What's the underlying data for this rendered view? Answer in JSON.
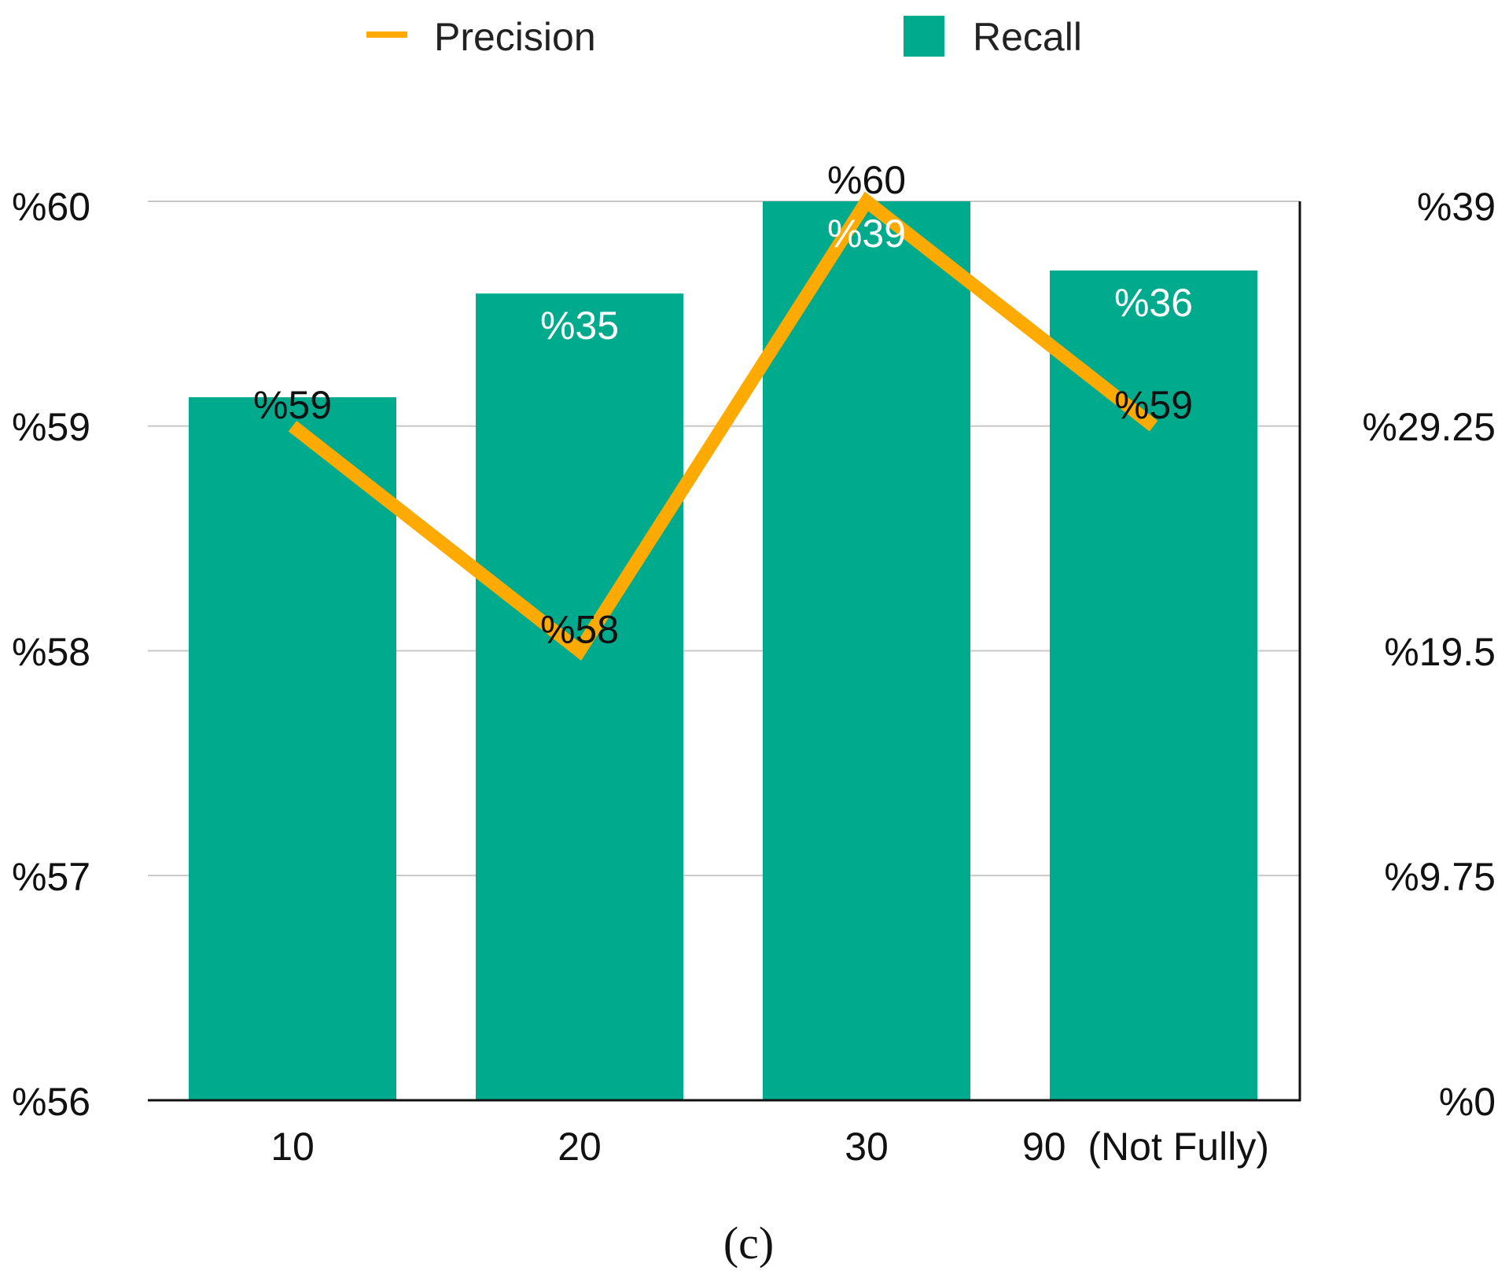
{
  "chart_data": {
    "type": "bar",
    "categories": [
      "10",
      "20",
      "30",
      "90  (Not Fully)"
    ],
    "series": [
      {
        "name": "Recall",
        "kind": "bar",
        "axis": "right",
        "values": [
          30.5,
          35,
          39,
          36
        ],
        "labels": [
          "",
          "%35",
          "%39",
          "%36"
        ],
        "color": "#00AA8D"
      },
      {
        "name": "Precision",
        "kind": "line",
        "axis": "left",
        "values": [
          59,
          58,
          60,
          59
        ],
        "labels": [
          "%59",
          "%58",
          "%60",
          "%59"
        ],
        "color": "#FFAA00"
      }
    ],
    "left_axis": {
      "ylim": [
        56,
        60
      ],
      "ticks": [
        "%60",
        "%59",
        "%58",
        "%57",
        "%56"
      ]
    },
    "right_axis": {
      "ylim": [
        0,
        39
      ],
      "ticks": [
        "%39",
        "%29.25",
        "%19.5",
        "%9.75",
        "%0"
      ]
    },
    "legend": {
      "position": "top-center",
      "precision_label": "Precision",
      "recall_label": "Recall"
    },
    "grid": true,
    "caption": "(c)"
  }
}
